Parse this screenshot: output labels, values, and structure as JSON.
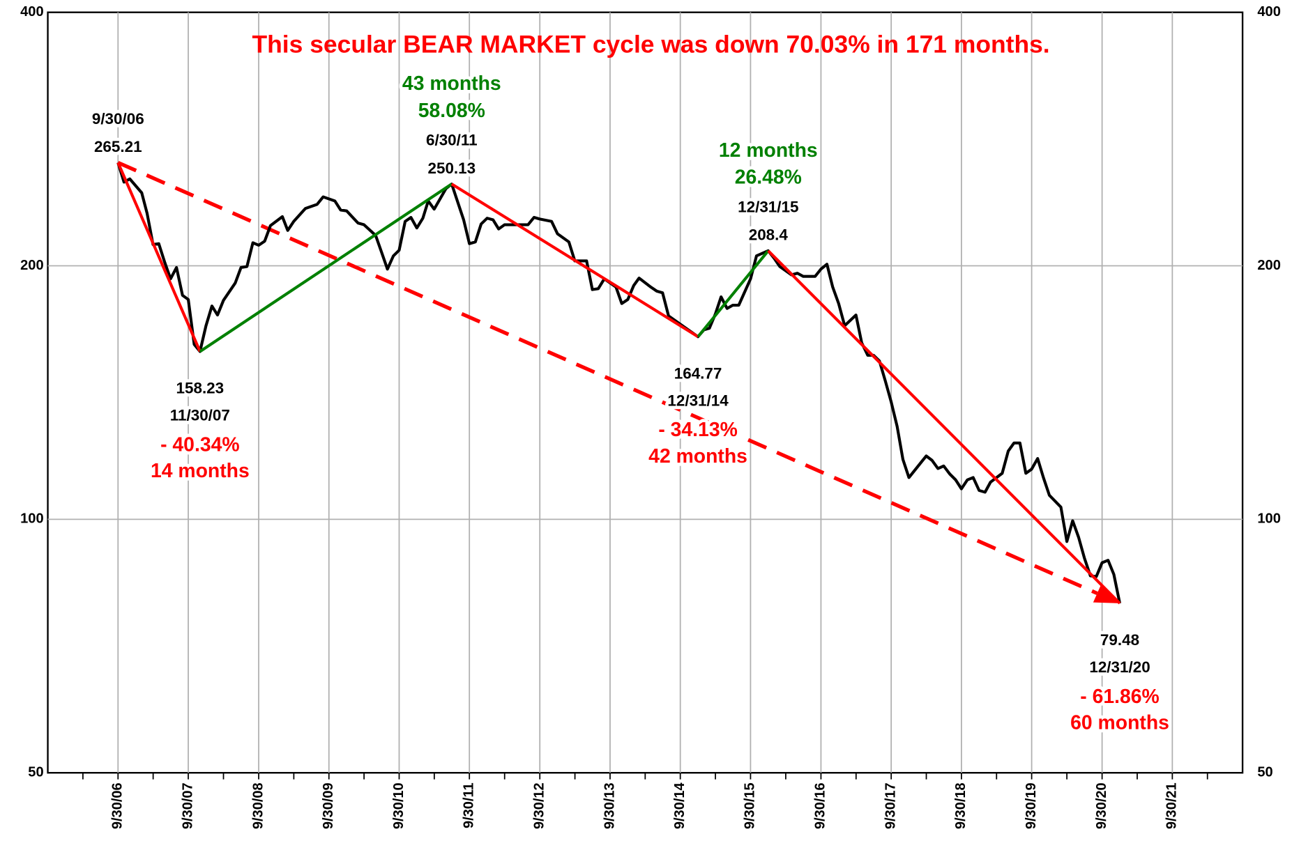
{
  "chart_data": {
    "type": "line",
    "title": "This secular BEAR MARKET cycle was down 70.03% in 171 months.",
    "title_color": "#ff0000",
    "x": [
      "9/30/06",
      "10/31/06",
      "11/30/06",
      "1/31/07",
      "2/28/07",
      "3/31/07",
      "4/30/07",
      "5/31/07",
      "6/30/07",
      "7/31/07",
      "8/31/07",
      "9/30/07",
      "10/31/07",
      "11/30/07",
      "12/31/07",
      "1/31/08",
      "2/29/08",
      "3/31/08",
      "5/31/08",
      "6/30/08",
      "7/31/08",
      "8/31/08",
      "9/30/08",
      "10/31/08",
      "11/30/08",
      "1/31/09",
      "2/28/09",
      "3/31/09",
      "5/31/09",
      "7/31/09",
      "8/31/09",
      "10/31/09",
      "11/30/09",
      "12/31/09",
      "2/28/10",
      "3/31/10",
      "5/31/10",
      "6/30/10",
      "7/31/10",
      "8/31/10",
      "9/30/10",
      "10/31/10",
      "11/30/10",
      "12/31/10",
      "1/31/11",
      "2/28/11",
      "3/31/11",
      "5/31/11",
      "6/30/11",
      "8/31/11",
      "9/30/11",
      "10/31/11",
      "11/30/11",
      "12/31/11",
      "1/31/12",
      "2/29/12",
      "3/31/12",
      "5/31/12",
      "7/31/12",
      "8/31/12",
      "9/30/12",
      "11/30/12",
      "12/31/12",
      "2/28/13",
      "3/31/13",
      "5/31/13",
      "6/30/13",
      "7/31/13",
      "8/31/13",
      "10/31/13",
      "11/30/13",
      "12/31/13",
      "1/31/14",
      "2/28/14",
      "4/30/14",
      "5/31/14",
      "6/30/14",
      "7/31/14",
      "12/31/14",
      "1/31/15",
      "2/28/15",
      "3/31/15",
      "4/30/15",
      "5/31/15",
      "6/30/15",
      "7/31/15",
      "9/30/15",
      "10/31/15",
      "12/31/15",
      "1/31/16",
      "2/29/16",
      "4/30/16",
      "5/31/16",
      "6/30/16",
      "8/31/16",
      "9/30/16",
      "10/31/16",
      "11/30/16",
      "12/31/16",
      "1/31/17",
      "3/31/17",
      "4/30/17",
      "5/31/17",
      "6/30/17",
      "7/31/17",
      "8/31/17",
      "9/30/17",
      "10/31/17",
      "11/30/17",
      "12/31/17",
      "2/28/18",
      "3/31/18",
      "4/30/18",
      "5/31/18",
      "6/30/18",
      "7/31/18",
      "8/31/18",
      "9/30/18",
      "10/31/18",
      "11/30/18",
      "12/31/18",
      "1/31/19",
      "2/28/19",
      "4/30/19",
      "5/31/19",
      "6/30/19",
      "7/31/19",
      "8/31/19",
      "9/30/19",
      "10/31/19",
      "11/30/19",
      "12/31/19",
      "2/29/20",
      "3/31/20",
      "4/30/20",
      "5/31/20",
      "6/30/20",
      "7/31/20",
      "8/31/20",
      "9/30/20",
      "10/31/20",
      "11/30/20",
      "12/31/20"
    ],
    "series": [
      {
        "color": "#000000",
        "values": [
          265.21,
          251.4,
          253.7,
          244.2,
          230.9,
          212.0,
          212.5,
          201.8,
          193.0,
          199.1,
          184.5,
          182.4,
          161.3,
          158.23,
          169.8,
          179.2,
          174.8,
          182.0,
          190.8,
          199.1,
          199.6,
          213.0,
          211.6,
          213.9,
          223.2,
          228.8,
          220.3,
          225.8,
          234.0,
          236.6,
          241.5,
          238.8,
          233.0,
          232.4,
          224.8,
          223.8,
          217.3,
          207.8,
          198.2,
          205.5,
          208.7,
          225.8,
          228.3,
          221.8,
          227.8,
          238.8,
          233.5,
          247.0,
          250.13,
          226.8,
          212.5,
          213.5,
          224.2,
          227.8,
          226.8,
          221.2,
          223.8,
          223.8,
          223.8,
          228.3,
          227.3,
          225.8,
          218.3,
          213.5,
          202.7,
          202.7,
          187.4,
          187.9,
          193.0,
          188.7,
          180.4,
          182.4,
          189.5,
          193.4,
          188.7,
          186.6,
          185.8,
          174.4,
          164.77,
          167.9,
          168.6,
          175.2,
          183.7,
          178.0,
          179.6,
          179.6,
          193.0,
          205.5,
          208.4,
          204.1,
          199.6,
          195.1,
          196.0,
          194.3,
          194.3,
          198.2,
          200.9,
          188.7,
          180.4,
          169.8,
          174.8,
          162.0,
          156.6,
          156.6,
          154.2,
          145.8,
          137.8,
          128.9,
          117.8,
          112.1,
          116.5,
          118.9,
          117.5,
          114.9,
          115.7,
          113.2,
          111.4,
          108.7,
          111.4,
          112.1,
          108.2,
          107.7,
          110.7,
          113.4,
          120.5,
          123.2,
          123.2,
          113.4,
          114.7,
          118.1,
          112.1,
          106.8,
          103.4,
          94.1,
          99.6,
          95.2,
          90.0,
          85.7,
          85.5,
          88.8,
          89.4,
          86.0,
          79.48
        ]
      }
    ],
    "xlim": [
      "9/30/05",
      "9/30/22"
    ],
    "xticks": [
      "9/30/06",
      "9/30/07",
      "9/30/08",
      "9/30/09",
      "9/30/10",
      "9/30/11",
      "9/30/12",
      "9/30/13",
      "9/30/14",
      "9/30/15",
      "9/30/16",
      "9/30/17",
      "9/30/18",
      "9/30/19",
      "9/30/20",
      "9/30/21"
    ],
    "ylim": [
      50,
      400
    ],
    "yticks": [
      50,
      100,
      200,
      400
    ],
    "log_y": true,
    "grid": true,
    "pivots": [
      "9/30/06",
      "11/30/07",
      "6/30/11",
      "12/31/14",
      "12/31/15",
      "12/31/20"
    ],
    "swings": [
      {
        "change": "- 40.34%",
        "months": "14 months",
        "color": "#ff0000"
      },
      {
        "change": "58.08%",
        "months": "43 months",
        "color": "#008000"
      },
      {
        "change": "- 34.13%",
        "months": "42 months",
        "color": "#ff0000"
      },
      {
        "change": "26.48%",
        "months": "12 months",
        "color": "#008000"
      },
      {
        "change": "- 61.86%",
        "months": "60 months",
        "color": "#ff0000"
      }
    ],
    "trend_color": "#ff0000"
  }
}
